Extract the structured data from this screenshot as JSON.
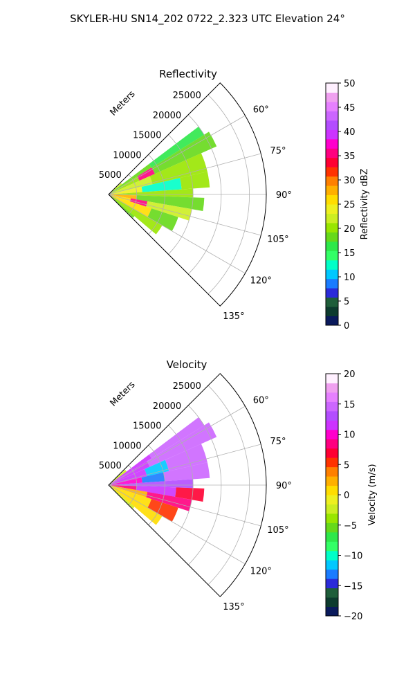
{
  "figure_title": "SKYLER-HU  SN14_202  0722_2.323 UTC Elevation 24°",
  "chart_data": [
    {
      "type": "polar-sector",
      "title": "Reflectivity",
      "radial_label": "Meters",
      "radial_ticks": [
        5000,
        10000,
        15000,
        20000,
        25000
      ],
      "radial_range": [
        0,
        28000
      ],
      "angle_ticks": [
        "60°",
        "75°",
        "90°",
        "105°",
        "120°",
        "135°"
      ],
      "angle_tick_values": [
        60,
        75,
        90,
        105,
        120,
        135
      ],
      "angle_range": [
        45,
        135
      ],
      "grid": true,
      "colorbar": {
        "label": "Reflectivity dBZ",
        "range": [
          0,
          50
        ],
        "ticks": [
          "0",
          "5",
          "10",
          "15",
          "20",
          "25",
          "30",
          "35",
          "40",
          "45",
          "50"
        ],
        "colors": [
          "#0a1a5c",
          "#0d3b2e",
          "#1f5e3a",
          "#2b2bd9",
          "#1a7cff",
          "#00c8ff",
          "#00ffc8",
          "#33ff66",
          "#2ee84a",
          "#66d91a",
          "#99e600",
          "#ccee22",
          "#eef020",
          "#ffdd00",
          "#ffb000",
          "#ff8000",
          "#ff3300",
          "#ff0033",
          "#ff0080",
          "#ff00cc",
          "#cc33ff",
          "#b34dff",
          "#cc66ff",
          "#e680ff",
          "#f0a0f0",
          "#fff0ff"
        ]
      },
      "echo_sectors": [
        {
          "a0": 47,
          "a1": 53,
          "r0": 0,
          "r1": 3000,
          "v": 22
        },
        {
          "a0": 53,
          "a1": 58,
          "r0": 0,
          "r1": 9000,
          "v": 18
        },
        {
          "a0": 53,
          "a1": 58,
          "r0": 9000,
          "r1": 20000,
          "v": 16
        },
        {
          "a0": 58,
          "a1": 66,
          "r0": 0,
          "r1": 6000,
          "v": 20
        },
        {
          "a0": 58,
          "a1": 66,
          "r0": 6000,
          "r1": 9000,
          "v": 36
        },
        {
          "a0": 58,
          "a1": 66,
          "r0": 9000,
          "r1": 21000,
          "v": 18
        },
        {
          "a0": 66,
          "a1": 77,
          "r0": 0,
          "r1": 8000,
          "v": 22
        },
        {
          "a0": 66,
          "a1": 77,
          "r0": 8000,
          "r1": 18000,
          "v": 20
        },
        {
          "a0": 77,
          "a1": 86,
          "r0": 0,
          "r1": 6000,
          "v": 24
        },
        {
          "a0": 77,
          "a1": 86,
          "r0": 6000,
          "r1": 13000,
          "v": 13
        },
        {
          "a0": 77,
          "a1": 86,
          "r0": 13000,
          "r1": 18000,
          "v": 20
        },
        {
          "a0": 86,
          "a1": 92,
          "r0": 0,
          "r1": 15000,
          "v": 21
        },
        {
          "a0": 92,
          "a1": 100,
          "r0": 0,
          "r1": 5000,
          "v": 27
        },
        {
          "a0": 92,
          "a1": 100,
          "r0": 5000,
          "r1": 17000,
          "v": 19
        },
        {
          "a0": 100,
          "a1": 108,
          "r0": 0,
          "r1": 4000,
          "v": 26
        },
        {
          "a0": 100,
          "a1": 108,
          "r0": 4000,
          "r1": 7000,
          "v": 36
        },
        {
          "a0": 100,
          "a1": 108,
          "r0": 7000,
          "r1": 15000,
          "v": 22
        },
        {
          "a0": 108,
          "a1": 120,
          "r0": 0,
          "r1": 8000,
          "v": 25
        },
        {
          "a0": 108,
          "a1": 120,
          "r0": 8000,
          "r1": 13000,
          "v": 19
        },
        {
          "a0": 120,
          "a1": 130,
          "r0": 0,
          "r1": 11000,
          "v": 21
        },
        {
          "a0": 130,
          "a1": 134,
          "r0": 0,
          "r1": 6000,
          "v": 19
        }
      ]
    },
    {
      "type": "polar-sector",
      "title": "Velocity",
      "radial_label": "Meters",
      "radial_ticks": [
        5000,
        10000,
        15000,
        20000,
        25000
      ],
      "radial_range": [
        0,
        28000
      ],
      "angle_ticks": [
        "60°",
        "75°",
        "90°",
        "105°",
        "120°",
        "135°"
      ],
      "angle_tick_values": [
        60,
        75,
        90,
        105,
        120,
        135
      ],
      "angle_range": [
        45,
        135
      ],
      "grid": true,
      "colorbar": {
        "label": "Velocity (m/s)",
        "range": [
          -20,
          20
        ],
        "ticks": [
          "−20",
          "−15",
          "−10",
          "−5",
          "0",
          "5",
          "10",
          "15",
          "20"
        ],
        "colors": [
          "#0a1a5c",
          "#0d3b2e",
          "#1f5e3a",
          "#2b2bd9",
          "#1a7cff",
          "#00c8ff",
          "#00ffc8",
          "#33ff66",
          "#2ee84a",
          "#66d91a",
          "#99e600",
          "#ccee22",
          "#eef020",
          "#ffdd00",
          "#ffb000",
          "#ff8000",
          "#ff3300",
          "#ff0033",
          "#ff0080",
          "#ff00cc",
          "#cc33ff",
          "#b34dff",
          "#cc66ff",
          "#e680ff",
          "#f0a0f0",
          "#fff0ff"
        ]
      },
      "echo_sectors": [
        {
          "a0": 47,
          "a1": 53,
          "r0": 0,
          "r1": 4000,
          "v": -2
        },
        {
          "a0": 53,
          "a1": 58,
          "r0": 0,
          "r1": 9000,
          "v": 12
        },
        {
          "a0": 53,
          "a1": 58,
          "r0": 9000,
          "r1": 20000,
          "v": 14
        },
        {
          "a0": 58,
          "a1": 66,
          "r0": 0,
          "r1": 8000,
          "v": 11
        },
        {
          "a0": 58,
          "a1": 66,
          "r0": 8000,
          "r1": 21000,
          "v": 15
        },
        {
          "a0": 66,
          "a1": 77,
          "r0": 0,
          "r1": 7000,
          "v": 11
        },
        {
          "a0": 66,
          "a1": 77,
          "r0": 7000,
          "r1": 11000,
          "v": -12
        },
        {
          "a0": 66,
          "a1": 77,
          "r0": 11000,
          "r1": 18000,
          "v": 15
        },
        {
          "a0": 77,
          "a1": 86,
          "r0": 0,
          "r1": 6000,
          "v": 10
        },
        {
          "a0": 77,
          "a1": 86,
          "r0": 6000,
          "r1": 10000,
          "v": -13
        },
        {
          "a0": 77,
          "a1": 86,
          "r0": 10000,
          "r1": 18000,
          "v": 14
        },
        {
          "a0": 86,
          "a1": 92,
          "r0": 0,
          "r1": 15000,
          "v": 13
        },
        {
          "a0": 92,
          "a1": 100,
          "r0": 0,
          "r1": 5000,
          "v": 8
        },
        {
          "a0": 92,
          "a1": 100,
          "r0": 5000,
          "r1": 12000,
          "v": 12
        },
        {
          "a0": 92,
          "a1": 100,
          "r0": 12000,
          "r1": 17000,
          "v": 7
        },
        {
          "a0": 100,
          "a1": 108,
          "r0": 0,
          "r1": 7000,
          "v": 3
        },
        {
          "a0": 100,
          "a1": 108,
          "r0": 7000,
          "r1": 15000,
          "v": 9
        },
        {
          "a0": 108,
          "a1": 120,
          "r0": 0,
          "r1": 8000,
          "v": 1
        },
        {
          "a0": 108,
          "a1": 120,
          "r0": 8000,
          "r1": 13000,
          "v": 5
        },
        {
          "a0": 120,
          "a1": 130,
          "r0": 0,
          "r1": 11000,
          "v": 0
        },
        {
          "a0": 130,
          "a1": 134,
          "r0": 0,
          "r1": 6000,
          "v": -3
        }
      ]
    }
  ]
}
